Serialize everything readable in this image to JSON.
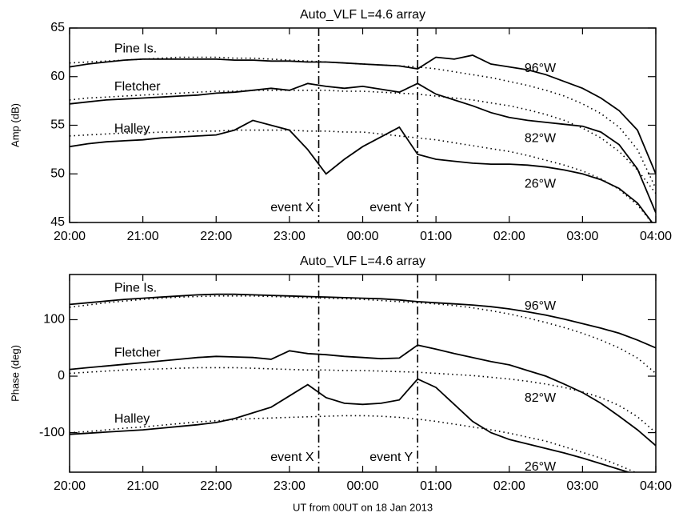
{
  "chart_data": [
    {
      "type": "line",
      "title": "Auto_VLF L=4.6 array",
      "ylabel": "Amp (dB)",
      "x": [
        20,
        20.25,
        20.5,
        20.75,
        21,
        21.25,
        21.5,
        21.75,
        22,
        22.25,
        22.5,
        22.75,
        23,
        23.25,
        23.5,
        23.75,
        24,
        24.25,
        24.5,
        24.75,
        25,
        25.25,
        25.5,
        25.75,
        26,
        26.25,
        26.5,
        26.75,
        27,
        27.25,
        27.5,
        27.75,
        28
      ],
      "xlim": [
        20,
        28
      ],
      "xticks": [
        {
          "value": 20,
          "label": "20:00"
        },
        {
          "value": 21,
          "label": "21:00"
        },
        {
          "value": 22,
          "label": "22:00"
        },
        {
          "value": 23,
          "label": "23:00"
        },
        {
          "value": 24,
          "label": "00:00"
        },
        {
          "value": 25,
          "label": "01:00"
        },
        {
          "value": 26,
          "label": "02:00"
        },
        {
          "value": 27,
          "label": "03:00"
        },
        {
          "value": 28,
          "label": "04:00"
        }
      ],
      "ylim": [
        45,
        65
      ],
      "yticks": [
        45,
        50,
        55,
        60,
        65
      ],
      "events": [
        {
          "label": "event X",
          "x": 23.4
        },
        {
          "label": "event Y",
          "x": 24.75
        }
      ],
      "series": [
        {
          "name": "Pine Is.",
          "label": "96°W",
          "color": "#000000",
          "dash": "solid",
          "values": [
            61.0,
            61.3,
            61.5,
            61.7,
            61.8,
            61.8,
            61.8,
            61.8,
            61.8,
            61.7,
            61.7,
            61.6,
            61.6,
            61.5,
            61.5,
            61.4,
            61.3,
            61.2,
            61.1,
            60.8,
            62.0,
            61.8,
            62.2,
            61.3,
            61.0,
            60.7,
            60.2,
            59.5,
            58.8,
            57.8,
            56.5,
            54.5,
            50.0
          ]
        },
        {
          "color": "#000000",
          "dash": "dotted",
          "values": [
            61.4,
            61.5,
            61.6,
            61.7,
            61.8,
            61.9,
            62.0,
            62.0,
            62.0,
            61.9,
            61.9,
            61.8,
            61.7,
            61.6,
            61.5,
            61.4,
            61.3,
            61.2,
            61.1,
            61.0,
            60.8,
            60.5,
            60.2,
            59.9,
            59.5,
            59.1,
            58.6,
            58.0,
            57.2,
            56.2,
            54.8,
            52.5,
            48.5
          ]
        },
        {
          "name": "Fletcher",
          "label": "82°W",
          "color": "#000000",
          "dash": "solid",
          "values": [
            57.2,
            57.4,
            57.6,
            57.7,
            57.8,
            57.9,
            58.0,
            58.1,
            58.3,
            58.4,
            58.6,
            58.8,
            58.6,
            59.3,
            59.0,
            58.8,
            59.0,
            58.7,
            58.4,
            59.3,
            58.2,
            57.6,
            57.0,
            56.3,
            55.8,
            55.5,
            55.3,
            55.1,
            54.9,
            54.3,
            53.0,
            50.5,
            46.0
          ]
        },
        {
          "color": "#000000",
          "dash": "dotted",
          "values": [
            57.6,
            57.8,
            57.9,
            58.0,
            58.1,
            58.2,
            58.3,
            58.4,
            58.5,
            58.5,
            58.6,
            58.6,
            58.6,
            58.6,
            58.6,
            58.5,
            58.5,
            58.4,
            58.3,
            58.2,
            58.0,
            57.8,
            57.6,
            57.3,
            57.0,
            56.6,
            56.1,
            55.5,
            54.7,
            53.7,
            52.3,
            50.4,
            48.0
          ]
        },
        {
          "name": "Halley",
          "label": "26°W",
          "color": "#000000",
          "dash": "solid",
          "values": [
            52.8,
            53.1,
            53.3,
            53.4,
            53.5,
            53.7,
            53.8,
            53.9,
            54.0,
            54.5,
            55.5,
            55.0,
            54.5,
            52.5,
            50.0,
            51.5,
            52.8,
            53.8,
            54.8,
            52.0,
            51.5,
            51.3,
            51.1,
            51.0,
            51.0,
            50.9,
            50.7,
            50.4,
            50.0,
            49.4,
            48.5,
            47.0,
            44.5
          ]
        },
        {
          "color": "#000000",
          "dash": "dotted",
          "values": [
            53.9,
            54.0,
            54.1,
            54.2,
            54.2,
            54.3,
            54.3,
            54.4,
            54.4,
            54.5,
            54.5,
            54.5,
            54.5,
            54.4,
            54.4,
            54.3,
            54.3,
            54.1,
            53.9,
            53.7,
            53.5,
            53.2,
            52.9,
            52.6,
            52.3,
            51.9,
            51.4,
            50.9,
            50.3,
            49.5,
            48.4,
            46.8,
            44.5
          ]
        }
      ]
    },
    {
      "type": "line",
      "title": "Auto_VLF L=4.6 array",
      "ylabel": "Phase (deg)",
      "xlabel": "UT from 00UT on 18 Jan 2013",
      "x": [
        20,
        20.25,
        20.5,
        20.75,
        21,
        21.25,
        21.5,
        21.75,
        22,
        22.25,
        22.5,
        22.75,
        23,
        23.25,
        23.5,
        23.75,
        24,
        24.25,
        24.5,
        24.75,
        25,
        25.25,
        25.5,
        25.75,
        26,
        26.25,
        26.5,
        26.75,
        27,
        27.25,
        27.5,
        27.75,
        28
      ],
      "xlim": [
        20,
        28
      ],
      "xticks": [
        {
          "value": 20,
          "label": "20:00"
        },
        {
          "value": 21,
          "label": "21:00"
        },
        {
          "value": 22,
          "label": "22:00"
        },
        {
          "value": 23,
          "label": "23:00"
        },
        {
          "value": 24,
          "label": "00:00"
        },
        {
          "value": 25,
          "label": "01:00"
        },
        {
          "value": 26,
          "label": "02:00"
        },
        {
          "value": 27,
          "label": "03:00"
        },
        {
          "value": 28,
          "label": "04:00"
        }
      ],
      "ylim": [
        -170,
        180
      ],
      "yticks": [
        -100,
        0,
        100
      ],
      "events": [
        {
          "label": "event X",
          "x": 23.4
        },
        {
          "label": "event Y",
          "x": 24.75
        }
      ],
      "series": [
        {
          "name": "Pine Is.",
          "label": "96°W",
          "color": "#000000",
          "dash": "solid",
          "values": [
            127,
            130,
            133,
            136,
            138,
            140,
            142,
            144,
            145,
            145,
            144,
            143,
            142,
            141,
            140,
            139,
            138,
            137,
            135,
            132,
            130,
            128,
            126,
            123,
            119,
            114,
            108,
            101,
            93,
            85,
            76,
            64,
            50
          ]
        },
        {
          "color": "#000000",
          "dash": "dotted",
          "values": [
            122,
            126,
            130,
            133,
            136,
            138,
            140,
            141,
            142,
            142,
            142,
            141,
            140,
            139,
            138,
            137,
            136,
            134,
            132,
            130,
            128,
            125,
            121,
            116,
            110,
            103,
            95,
            86,
            76,
            64,
            50,
            32,
            5
          ]
        },
        {
          "name": "Fletcher",
          "label": "82°W",
          "color": "#000000",
          "dash": "solid",
          "values": [
            12,
            15,
            18,
            21,
            24,
            27,
            30,
            33,
            35,
            34,
            33,
            30,
            45,
            40,
            38,
            35,
            33,
            31,
            32,
            55,
            48,
            40,
            33,
            26,
            20,
            10,
            0,
            -14,
            -29,
            -48,
            -71,
            -95,
            -123
          ]
        },
        {
          "color": "#000000",
          "dash": "dotted",
          "values": [
            5,
            7,
            9,
            11,
            12,
            13,
            14,
            15,
            15,
            15,
            14,
            13,
            12,
            11,
            11,
            10,
            10,
            9,
            8,
            7,
            5,
            3,
            1,
            -2,
            -5,
            -9,
            -14,
            -20,
            -28,
            -38,
            -52,
            -72,
            -100
          ]
        },
        {
          "name": "Halley",
          "label": "26°W",
          "color": "#000000",
          "dash": "solid",
          "values": [
            -103,
            -101,
            -99,
            -97,
            -95,
            -92,
            -89,
            -86,
            -82,
            -75,
            -65,
            -55,
            -35,
            -15,
            -38,
            -48,
            -50,
            -48,
            -42,
            -5,
            -20,
            -50,
            -80,
            -100,
            -112,
            -120,
            -128,
            -136,
            -145,
            -155,
            -165,
            -175,
            -185
          ]
        },
        {
          "color": "#000000",
          "dash": "dotted",
          "values": [
            -100,
            -98,
            -95,
            -92,
            -90,
            -87,
            -84,
            -81,
            -79,
            -77,
            -75,
            -74,
            -73,
            -72,
            -71,
            -70,
            -70,
            -71,
            -73,
            -76,
            -80,
            -85,
            -90,
            -95,
            -101,
            -108,
            -115,
            -125,
            -135,
            -145,
            -158,
            -172,
            -190
          ]
        }
      ]
    }
  ]
}
